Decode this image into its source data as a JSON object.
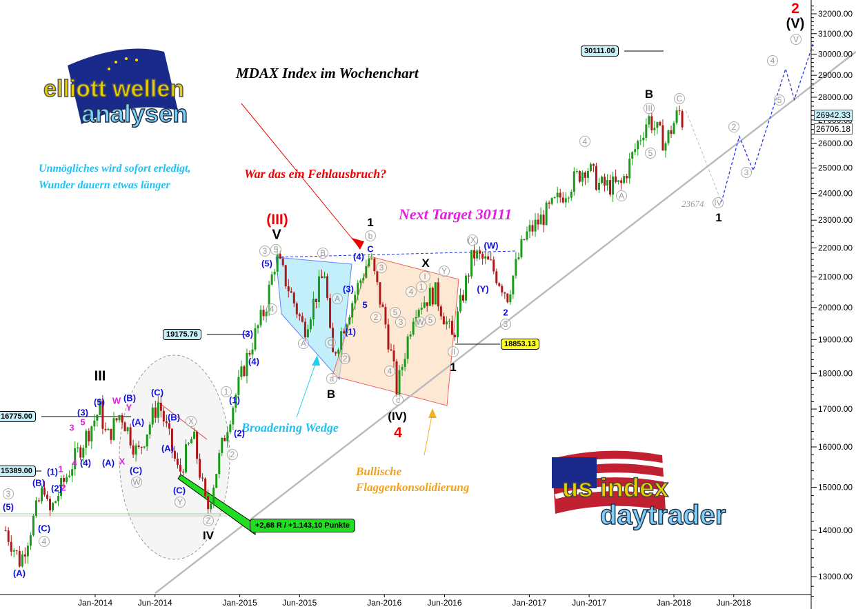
{
  "chart_data": {
    "type": "candlestick",
    "title": "MDAX Index im Wochenchart",
    "y_scale": "log",
    "ylim": [
      12500,
      32500
    ],
    "y_ticks": [
      13000,
      14000,
      15000,
      16000,
      17000,
      18000,
      19000,
      20000,
      21000,
      22000,
      23000,
      24000,
      25000,
      26000,
      27000,
      28000,
      29000,
      30000,
      31000,
      32000
    ],
    "y_tick_format": "0.00",
    "x_ticks": [
      "Jan-2014",
      "Jun-2014",
      "Jan-2015",
      "Jun-2015",
      "Jan-2016",
      "Jun-2016",
      "Jan-2017",
      "Jun-2017",
      "Jan-2018",
      "Jun-2018"
    ],
    "x_tick_dates": [
      "2014-01-01",
      "2014-06-01",
      "2015-01-01",
      "2015-06-01",
      "2016-01-01",
      "2016-06-01",
      "2017-01-01",
      "2017-06-01",
      "2018-01-01",
      "2018-06-01"
    ],
    "price_path": [
      [
        "2013-05-20",
        14000
      ],
      [
        "2013-06-26",
        13300
      ],
      [
        "2013-08-28",
        15100
      ],
      [
        "2013-09-04",
        14300
      ],
      [
        "2013-10-27",
        15400
      ],
      [
        "2014-01-13",
        17000
      ],
      [
        "2014-01-30",
        16200
      ],
      [
        "2014-03-06",
        16900
      ],
      [
        "2014-04-18",
        15800
      ],
      [
        "2014-06-10",
        17200
      ],
      [
        "2014-07-31",
        15300
      ],
      [
        "2014-09-05",
        16300
      ],
      [
        "2014-10-10",
        14400
      ],
      [
        "2014-12-01",
        16600
      ],
      [
        "2015-01-23",
        18600
      ],
      [
        "2015-03-07",
        20000
      ],
      [
        "2015-04-03",
        21700
      ],
      [
        "2015-06-12",
        19300
      ],
      [
        "2015-08-04",
        21200
      ],
      [
        "2015-08-21",
        18400
      ],
      [
        "2015-10-12",
        20200
      ],
      [
        "2015-11-25",
        21700
      ],
      [
        "2016-01-07",
        19300
      ],
      [
        "2016-02-02",
        17500
      ],
      [
        "2016-03-17",
        20000
      ],
      [
        "2016-05-08",
        20500
      ],
      [
        "2016-06-21",
        19000
      ],
      [
        "2016-08-12",
        21800
      ],
      [
        "2016-09-25",
        21400
      ],
      [
        "2016-11-07",
        20400
      ],
      [
        "2016-12-21",
        22400
      ],
      [
        "2017-02-28",
        23500
      ],
      [
        "2017-05-25",
        25100
      ],
      [
        "2017-06-28",
        24300
      ],
      [
        "2017-08-20",
        24300
      ],
      [
        "2017-10-28",
        27100
      ],
      [
        "2017-12-10",
        26000
      ],
      [
        "2018-01-14",
        27400
      ],
      [
        "2018-01-26",
        26700
      ]
    ],
    "projection_path": [
      [
        "2018-01-26",
        27400
      ],
      [
        "2018-05-01",
        23674
      ],
      [
        "2018-06-15",
        26300
      ],
      [
        "2018-07-20",
        24900
      ],
      [
        "2018-10-10",
        29300
      ],
      [
        "2018-11-01",
        27900
      ],
      [
        "2018-12-20",
        30600
      ]
    ],
    "price_levels": [
      "16775.00",
      "15389.00",
      "19175.76",
      "18853.13",
      "30111.00"
    ],
    "last_prices": [
      "26942.33",
      "26706.18"
    ],
    "candle_colors": {
      "up": "#1a9a1a",
      "down": "#b01818"
    },
    "annotations": [
      "(A)",
      "(B)",
      "(C)",
      "(5)",
      "(1)",
      "1",
      "2",
      "(2)",
      "3",
      "(3)",
      "4",
      "(4)",
      "5",
      "(5)",
      "III",
      "W",
      "Y",
      "(B)",
      "(A)",
      "(A)",
      "X",
      "(C)",
      "W",
      "(C)",
      "(B)",
      "X",
      "(A)",
      "(C)",
      "Y",
      "Z",
      "IV",
      "1",
      "(1)",
      "(2)",
      "2",
      "(3)",
      "(4)",
      "3",
      "4",
      "(5)",
      "3",
      "5",
      "V",
      "(III)",
      "4",
      "A",
      "B",
      "A",
      "C",
      "a",
      "B",
      "(2)",
      "(1)",
      "(3)",
      "(4)",
      "5",
      "C",
      "b",
      "1",
      "2",
      "3",
      "4",
      "5",
      "c",
      "(IV)",
      "4",
      "1",
      "3",
      "4",
      "W",
      "5",
      "I",
      "X",
      "Y",
      "II",
      "1",
      "(X)",
      "(W)",
      "(Y)",
      "2",
      "3",
      "4",
      "A",
      "5",
      "III",
      "B",
      "C",
      "IV",
      "1",
      "2",
      "3",
      "4",
      "5",
      "V",
      "(V)",
      "2"
    ]
  },
  "texts": {
    "title": "MDAX Index im Wochenchart",
    "motto1": "Unmögliches wird sofort erledigt,",
    "motto2": "Wunder dauern etwas länger",
    "question": "War das ein Fehlausbruch?",
    "target": "Next Target 30111",
    "wedge": "Broadening Wedge",
    "flag1": "Bullische",
    "flag2": "Flaggenkonsolidierung",
    "result": "+2,68 R / +1.143,10 Punkte",
    "proj_label": "23674"
  },
  "logos": {
    "top": "elliott wellen analysen",
    "bottom": "us index daytrader"
  }
}
